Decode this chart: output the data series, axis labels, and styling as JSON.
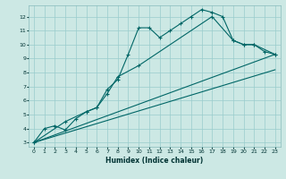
{
  "title": "",
  "xlabel": "Humidex (Indice chaleur)",
  "background_color": "#cce8e4",
  "grid_color": "#99cccc",
  "line_color": "#006666",
  "xlim": [
    -0.5,
    23.5
  ],
  "ylim": [
    2.7,
    12.8
  ],
  "xticks": [
    0,
    1,
    2,
    3,
    4,
    5,
    6,
    7,
    8,
    9,
    10,
    11,
    12,
    13,
    14,
    15,
    16,
    17,
    18,
    19,
    20,
    21,
    22,
    23
  ],
  "yticks": [
    3,
    4,
    5,
    6,
    7,
    8,
    9,
    10,
    11,
    12
  ],
  "series1_x": [
    0,
    1,
    2,
    3,
    4,
    5,
    6,
    7,
    8,
    9,
    10,
    11,
    12,
    13,
    14,
    15,
    16,
    17,
    18,
    19,
    20,
    21,
    22,
    23
  ],
  "series1_y": [
    3.0,
    4.0,
    4.2,
    3.9,
    4.7,
    5.2,
    5.5,
    6.8,
    7.5,
    9.3,
    11.2,
    11.2,
    10.5,
    11.0,
    11.5,
    12.0,
    12.5,
    12.3,
    12.0,
    10.3,
    10.0,
    10.0,
    9.5,
    9.3
  ],
  "series2_x": [
    0,
    3,
    5,
    6,
    7,
    8,
    10,
    17,
    19,
    20,
    21,
    23
  ],
  "series2_y": [
    3.0,
    4.5,
    5.2,
    5.5,
    6.5,
    7.7,
    8.5,
    12.0,
    10.3,
    10.0,
    10.0,
    9.3
  ],
  "series3_x": [
    0,
    23
  ],
  "series3_y": [
    3.0,
    8.2
  ],
  "series4_x": [
    0,
    23
  ],
  "series4_y": [
    3.0,
    9.3
  ]
}
